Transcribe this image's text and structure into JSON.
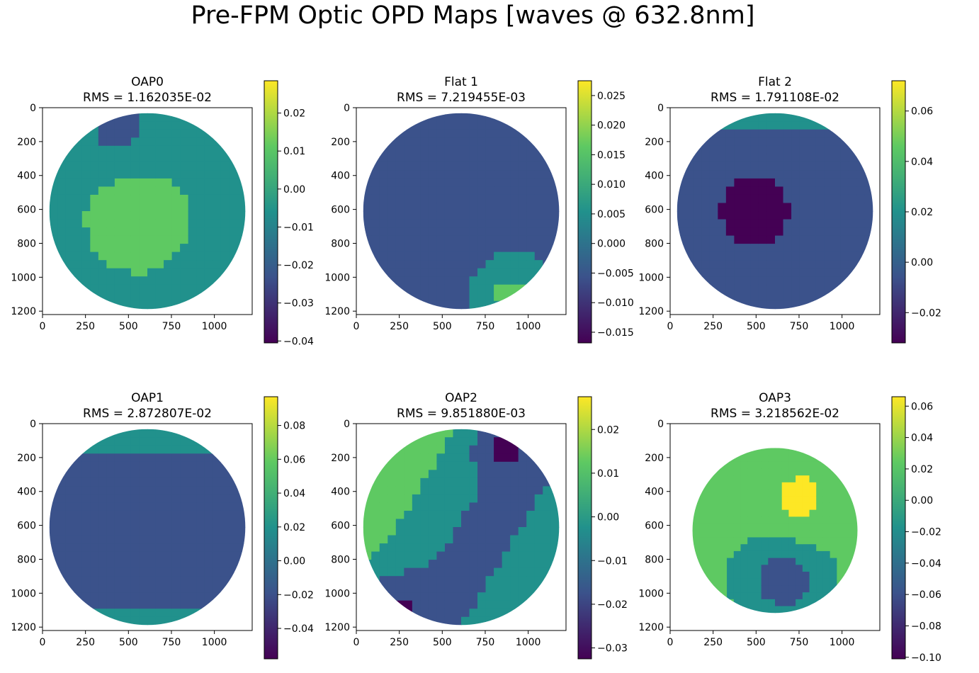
{
  "figure_title": "Pre-FPM Optic OPD Maps [waves @ 632.8nm]",
  "colormap": [
    "#440154",
    "#3b528b",
    "#21918c",
    "#5ec962",
    "#fde725"
  ],
  "chart_data": [
    {
      "type": "heatmap",
      "title": "OAP0",
      "rms": "RMS = 1.162035E-02",
      "xticks": [
        "0",
        "250",
        "500",
        "750",
        "1000"
      ],
      "xtick_values": [
        0,
        250,
        500,
        750,
        1000
      ],
      "yticks": [
        "0",
        "200",
        "400",
        "600",
        "800",
        "1000",
        "1200"
      ],
      "ytick_values": [
        0,
        200,
        400,
        600,
        800,
        1000,
        1200
      ],
      "xlim": [
        0,
        1220
      ],
      "ylim": [
        1220,
        0
      ],
      "aperture": {
        "cx": 610,
        "cy": 610,
        "r": 570
      },
      "colorbar_ticks": [
        "0.02",
        "0.01",
        "0.00",
        "−0.01",
        "−0.02",
        "−0.03",
        "−0.04"
      ],
      "colorbar_values": [
        0.02,
        0.01,
        0.0,
        -0.01,
        -0.02,
        -0.03,
        -0.04
      ],
      "vmin": -0.0405,
      "vmax": 0.0285
    },
    {
      "type": "heatmap",
      "title": "Flat 1",
      "rms": "RMS = 7.219455E-03",
      "xticks": [
        "0",
        "250",
        "500",
        "750",
        "1000"
      ],
      "xtick_values": [
        0,
        250,
        500,
        750,
        1000
      ],
      "yticks": [
        "0",
        "200",
        "400",
        "600",
        "800",
        "1000",
        "1200"
      ],
      "ytick_values": [
        0,
        200,
        400,
        600,
        800,
        1000,
        1200
      ],
      "xlim": [
        0,
        1220
      ],
      "ylim": [
        1220,
        0
      ],
      "aperture": {
        "cx": 610,
        "cy": 610,
        "r": 570
      },
      "colorbar_ticks": [
        "0.025",
        "0.020",
        "0.015",
        "0.010",
        "0.005",
        "0.000",
        "−0.005",
        "−0.010",
        "−0.015"
      ],
      "colorbar_values": [
        0.025,
        0.02,
        0.015,
        0.01,
        0.005,
        0.0,
        -0.005,
        -0.01,
        -0.015
      ],
      "vmin": -0.0168,
      "vmax": 0.0275
    },
    {
      "type": "heatmap",
      "title": "Flat 2",
      "rms": "RMS = 1.791108E-02",
      "xticks": [
        "0",
        "250",
        "500",
        "750",
        "1000"
      ],
      "xtick_values": [
        0,
        250,
        500,
        750,
        1000
      ],
      "yticks": [
        "0",
        "200",
        "400",
        "600",
        "800",
        "1000",
        "1200"
      ],
      "ytick_values": [
        0,
        200,
        400,
        600,
        800,
        1000,
        1200
      ],
      "xlim": [
        0,
        1220
      ],
      "ylim": [
        1220,
        0
      ],
      "aperture": {
        "cx": 610,
        "cy": 610,
        "r": 570
      },
      "colorbar_ticks": [
        "0.06",
        "0.04",
        "0.02",
        "0.00",
        "−0.02"
      ],
      "colorbar_values": [
        0.06,
        0.04,
        0.02,
        0.0,
        -0.02
      ],
      "vmin": -0.032,
      "vmax": 0.072
    },
    {
      "type": "heatmap",
      "title": "OAP1",
      "rms": "RMS = 2.872807E-02",
      "xticks": [
        "0",
        "250",
        "500",
        "750",
        "1000"
      ],
      "xtick_values": [
        0,
        250,
        500,
        750,
        1000
      ],
      "yticks": [
        "0",
        "200",
        "400",
        "600",
        "800",
        "1000",
        "1200"
      ],
      "ytick_values": [
        0,
        200,
        400,
        600,
        800,
        1000,
        1200
      ],
      "xlim": [
        0,
        1220
      ],
      "ylim": [
        1220,
        0
      ],
      "aperture": {
        "cx": 610,
        "cy": 610,
        "r": 570
      },
      "colorbar_ticks": [
        "0.08",
        "0.06",
        "0.04",
        "0.02",
        "0.00",
        "−0.02",
        "−0.04"
      ],
      "colorbar_values": [
        0.08,
        0.06,
        0.04,
        0.02,
        0.0,
        -0.02,
        -0.04
      ],
      "vmin": -0.058,
      "vmax": 0.097
    },
    {
      "type": "heatmap",
      "title": "OAP2",
      "rms": "RMS = 9.851880E-03",
      "xticks": [
        "0",
        "250",
        "500",
        "750",
        "1000"
      ],
      "xtick_values": [
        0,
        250,
        500,
        750,
        1000
      ],
      "yticks": [
        "0",
        "200",
        "400",
        "600",
        "800",
        "1000",
        "1200"
      ],
      "ytick_values": [
        0,
        200,
        400,
        600,
        800,
        1000,
        1200
      ],
      "xlim": [
        0,
        1220
      ],
      "ylim": [
        1220,
        0
      ],
      "aperture": {
        "cx": 610,
        "cy": 610,
        "r": 570
      },
      "colorbar_ticks": [
        "0.02",
        "0.01",
        "0.00",
        "−0.01",
        "−0.02",
        "−0.03"
      ],
      "colorbar_values": [
        0.02,
        0.01,
        0.0,
        -0.01,
        -0.02,
        -0.03
      ],
      "vmin": -0.0325,
      "vmax": 0.0275
    },
    {
      "type": "heatmap",
      "title": "OAP3",
      "rms": "RMS = 3.218562E-02",
      "xticks": [
        "0",
        "250",
        "500",
        "750",
        "1000"
      ],
      "xtick_values": [
        0,
        250,
        500,
        750,
        1000
      ],
      "yticks": [
        "0",
        "200",
        "400",
        "600",
        "800",
        "1000",
        "1200"
      ],
      "ytick_values": [
        0,
        200,
        400,
        600,
        800,
        1000,
        1200
      ],
      "xlim": [
        0,
        1220
      ],
      "ylim": [
        1220,
        0
      ],
      "aperture": {
        "cx": 610,
        "cy": 630,
        "r": 480
      },
      "colorbar_ticks": [
        "0.06",
        "0.04",
        "0.02",
        "0.00",
        "−0.02",
        "−0.04",
        "−0.06",
        "−0.08",
        "−0.10"
      ],
      "colorbar_values": [
        0.06,
        0.04,
        0.02,
        0.0,
        -0.02,
        -0.04,
        -0.06,
        -0.08,
        -0.1
      ],
      "vmin": -0.101,
      "vmax": 0.066
    }
  ]
}
